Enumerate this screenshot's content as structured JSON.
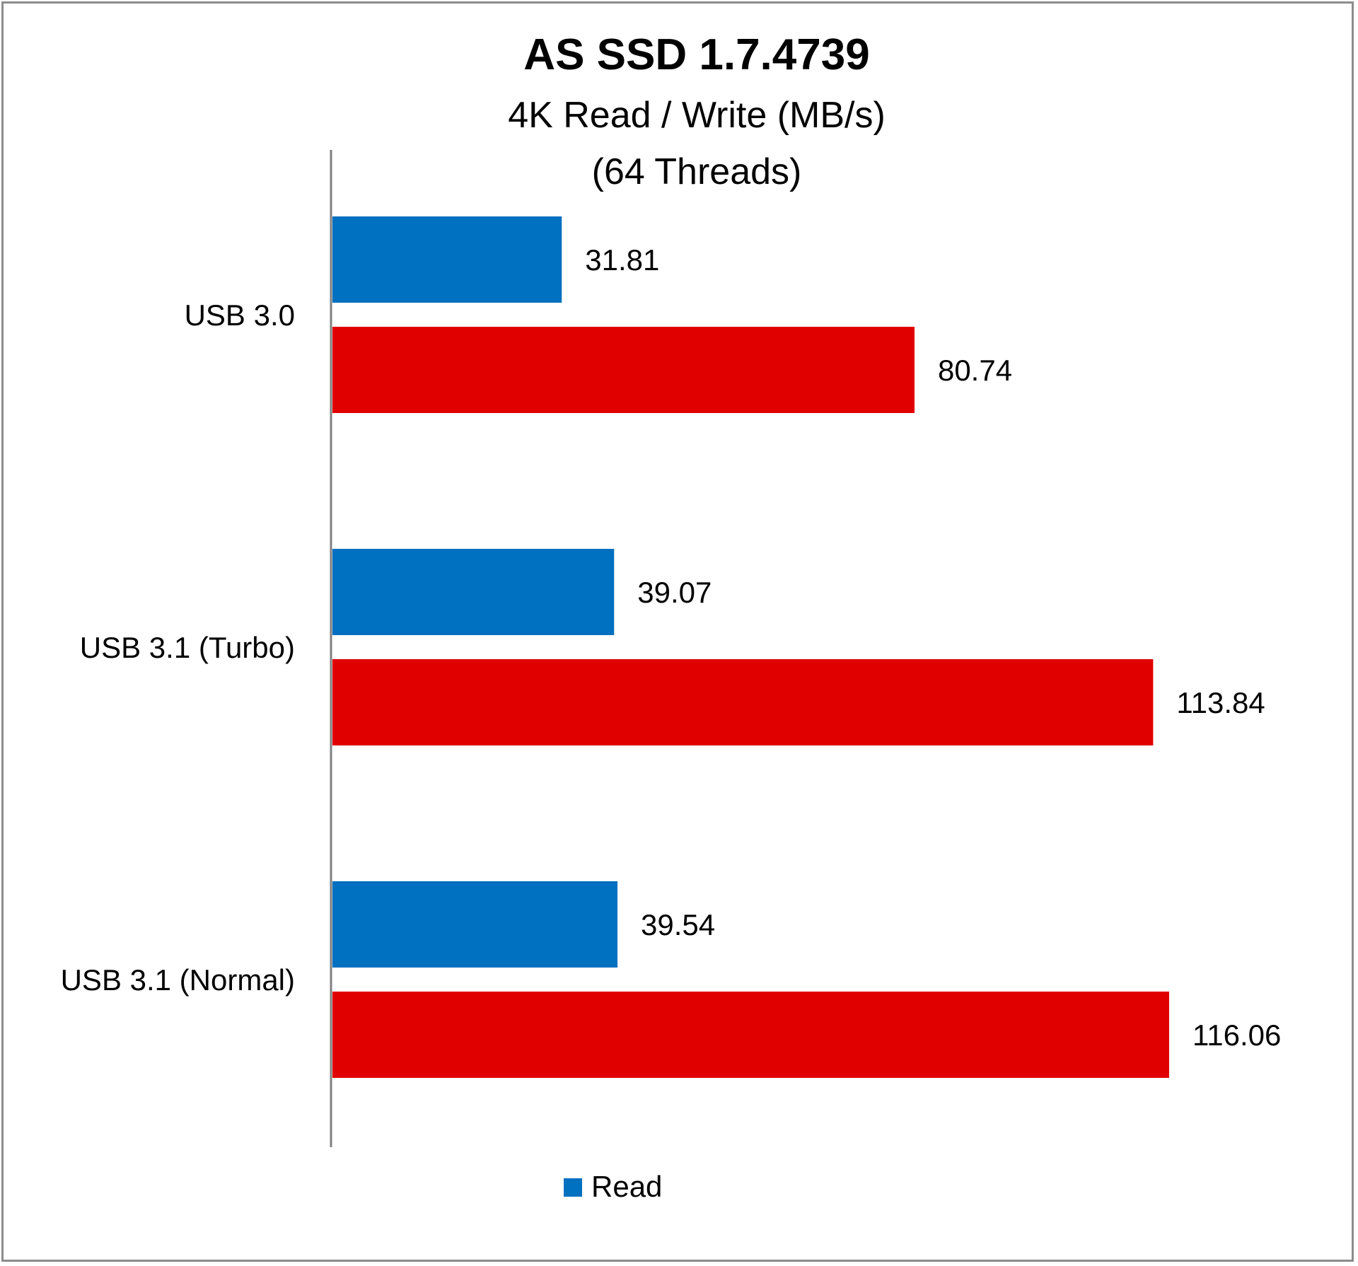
{
  "chart_data": {
    "type": "bar",
    "orientation": "horizontal",
    "title": "AS SSD 1.7.4739",
    "subtitle_lines": [
      "4K Read / Write (MB/s)",
      "(64 Threads)"
    ],
    "categories": [
      "USB 3.0",
      "USB 3.1 (Turbo)",
      "USB 3.1 (Normal)"
    ],
    "series": [
      {
        "name": "Read",
        "values": [
          31.81,
          39.07,
          39.54
        ],
        "color": "#0070c0",
        "labels": [
          "31.81",
          "39.07",
          "39.54"
        ]
      },
      {
        "values": [
          80.74,
          113.84,
          116.06
        ],
        "color": "#e00000",
        "labels": [
          "80.74",
          "113.84",
          "116.06"
        ]
      }
    ],
    "xlim": [
      0,
      140
    ],
    "grid": false,
    "legend": {
      "position": "bottom",
      "entries": [
        "Read"
      ]
    }
  }
}
